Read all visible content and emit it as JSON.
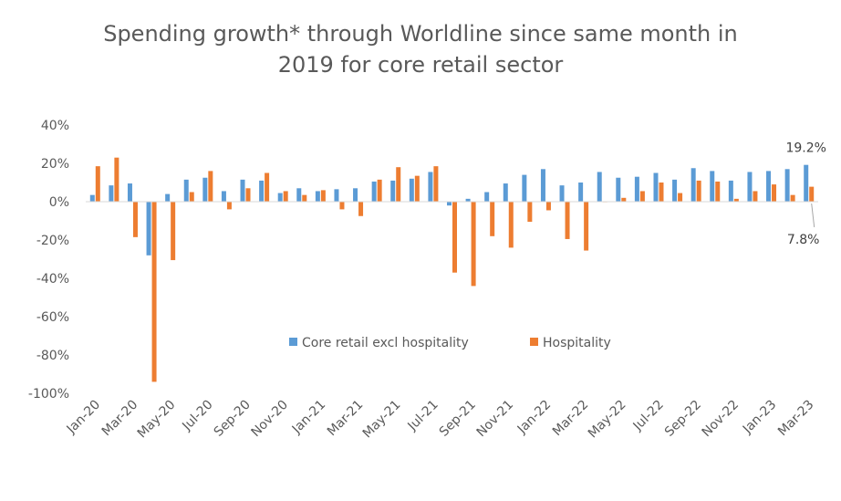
{
  "chart_data": {
    "type": "bar",
    "title_line1": "Spending growth* through Worldline since same month in",
    "title_line2": "2019 for core retail sector",
    "ylim": [
      -100,
      40
    ],
    "yticks": [
      40,
      20,
      0,
      -20,
      -40,
      -60,
      -80,
      -100
    ],
    "ytick_labels": [
      "40%",
      "20%",
      "0%",
      "-20%",
      "-40%",
      "-60%",
      "-80%",
      "-100%"
    ],
    "categories": [
      "Jan-20",
      "Feb-20",
      "Mar-20",
      "Apr-20",
      "May-20",
      "Jun-20",
      "Jul-20",
      "Aug-20",
      "Sep-20",
      "Oct-20",
      "Nov-20",
      "Dec-20",
      "Jan-21",
      "Feb-21",
      "Mar-21",
      "Apr-21",
      "May-21",
      "Jun-21",
      "Jul-21",
      "Aug-21",
      "Sep-21",
      "Oct-21",
      "Nov-21",
      "Dec-21",
      "Jan-22",
      "Feb-22",
      "Mar-22",
      "Apr-22",
      "May-22",
      "Jun-22",
      "Jul-22",
      "Aug-22",
      "Sep-22",
      "Oct-22",
      "Nov-22",
      "Dec-22",
      "Jan-23",
      "Feb-23",
      "Mar-23"
    ],
    "x_tick_labels": [
      "Jan-20",
      "Mar-20",
      "May-20",
      "Jul-20",
      "Sep-20",
      "Nov-20",
      "Jan-21",
      "Mar-21",
      "May-21",
      "Jul-21",
      "Sep-21",
      "Nov-21",
      "Jan-22",
      "Mar-22",
      "May-22",
      "Jul-22",
      "Sep-22",
      "Nov-22",
      "Jan-23",
      "Mar-23"
    ],
    "series": [
      {
        "name": "Core retail excl hospitality",
        "color": "#5B9BD5",
        "values": [
          3.5,
          8.5,
          9.5,
          -28,
          4,
          11.5,
          12.5,
          5.5,
          11.5,
          11,
          4.5,
          7,
          5.5,
          6.5,
          7,
          10.5,
          11,
          12,
          15.5,
          -2,
          1.5,
          5,
          9.5,
          14,
          17,
          8.5,
          10,
          15.5,
          12.5,
          13,
          15,
          11.5,
          17.5,
          16,
          11,
          15.5,
          16,
          17,
          19.2
        ]
      },
      {
        "name": "Hospitality",
        "color": "#ED7D31",
        "values": [
          18.5,
          23,
          -18.5,
          -94,
          -30.5,
          5,
          16,
          -4,
          7,
          15,
          5.5,
          3.5,
          6,
          -4,
          -7.5,
          11.5,
          18,
          13.5,
          18.5,
          -37,
          -44,
          -18,
          -24,
          -10.5,
          -4.5,
          -19.5,
          -25.5,
          0,
          2,
          5.5,
          10,
          4.5,
          11,
          10.5,
          1.5,
          5.5,
          9,
          3.5,
          7.8
        ]
      }
    ],
    "annotations": [
      {
        "text": "19.2%",
        "series": 0,
        "index": 38
      },
      {
        "text": "7.8%",
        "series": 1,
        "index": 38
      }
    ],
    "legend": {
      "placement": "inside-lower-center"
    }
  }
}
